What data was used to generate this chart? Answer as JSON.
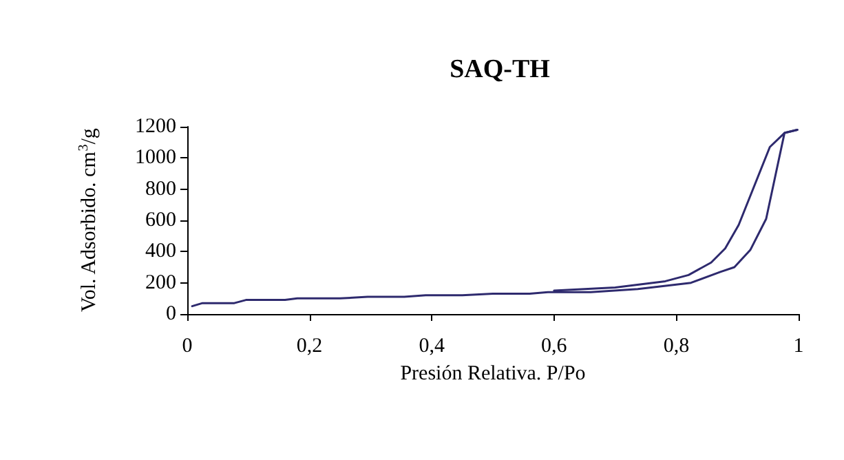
{
  "chart_data": {
    "type": "line",
    "title": "SAQ-TH",
    "xlabel": "Presión Relativa. P/Po",
    "ylabel": "Vol. Adsorbido. cm$^{3}$/g",
    "xlim": [
      0,
      1
    ],
    "xticks": [
      0,
      {
        "value": 0.2,
        "label": "0,2"
      },
      {
        "value": 0.4,
        "label": "0,4"
      },
      {
        "value": 0.6,
        "label": "0,6"
      },
      {
        "value": 0.8,
        "label": "0,8"
      },
      1
    ],
    "ylim": [
      0,
      1200
    ],
    "yticks": [
      0,
      200,
      400,
      600,
      800,
      1000,
      1200
    ],
    "grid": false,
    "marker": "none",
    "line_style": "solid",
    "series": [
      {
        "color": "#2e2a6e",
        "x": [
          0.008,
          0.025,
          0.077,
          0.096,
          0.16,
          0.18,
          0.25,
          0.295,
          0.355,
          0.39,
          0.45,
          0.5,
          0.56,
          0.59,
          0.66,
          0.737,
          0.824,
          0.872,
          0.895,
          0.921,
          0.947,
          0.977,
          0.998
        ],
        "values": [
          50,
          70,
          70,
          90,
          90,
          100,
          100,
          110,
          110,
          120,
          120,
          130,
          130,
          140,
          140,
          160,
          200,
          270,
          300,
          410,
          610,
          1160,
          1180
        ]
      },
      {
        "color": "#2e2a6e",
        "x": [
          0.998,
          0.977,
          0.953,
          0.902,
          0.88,
          0.857,
          0.82,
          0.782,
          0.7,
          0.6
        ],
        "values": [
          1180,
          1160,
          1070,
          570,
          420,
          330,
          250,
          210,
          170,
          150
        ]
      }
    ]
  }
}
